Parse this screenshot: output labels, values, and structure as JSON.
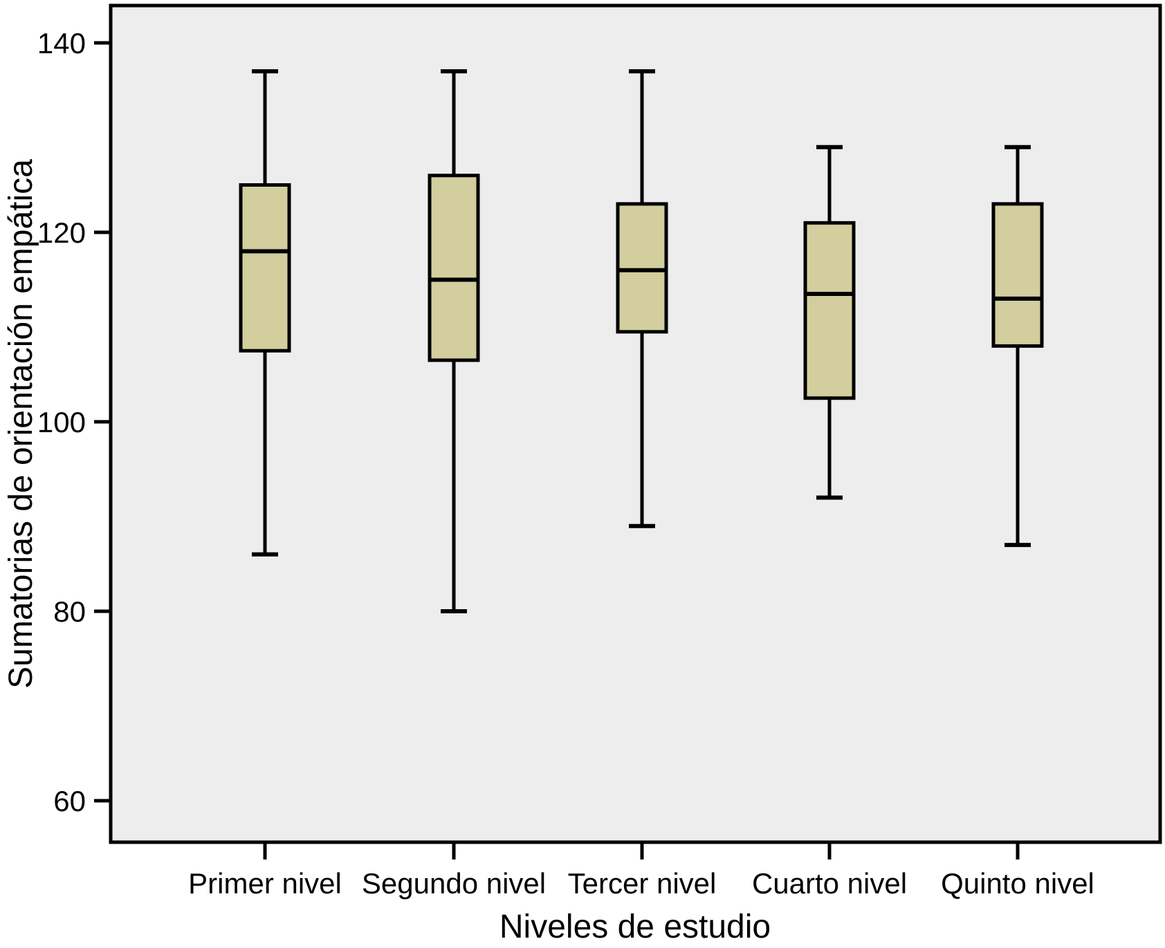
{
  "chart_data": {
    "type": "boxplot",
    "title": "",
    "xlabel": "Niveles de estudio",
    "ylabel": "Sumatorias de orientación empática",
    "categories": [
      "Primer nivel",
      "Segundo nivel",
      "Tercer nivel",
      "Cuarto nivel",
      "Quinto nivel"
    ],
    "series": [
      {
        "name": "Primer nivel",
        "min": 86,
        "q1": 107.5,
        "median": 118,
        "q3": 125,
        "max": 137
      },
      {
        "name": "Segundo nivel",
        "min": 80,
        "q1": 106.5,
        "median": 115,
        "q3": 126,
        "max": 137
      },
      {
        "name": "Tercer nivel",
        "min": 89,
        "q1": 109.5,
        "median": 116,
        "q3": 123,
        "max": 137
      },
      {
        "name": "Cuarto nivel",
        "min": 92,
        "q1": 102.5,
        "median": 113.5,
        "q3": 121,
        "max": 129
      },
      {
        "name": "Quinto nivel",
        "min": 87,
        "q1": 108,
        "median": 113,
        "q3": 123,
        "max": 129
      }
    ],
    "y_ticks": [
      140,
      120,
      100,
      80,
      60
    ],
    "ylim": [
      56,
      144
    ],
    "grid": false,
    "legend": "none",
    "styles": {
      "box_fill": "#d2ce9e",
      "line_color": "#000000",
      "plot_bg": "#ededed",
      "page_bg": "#ffffff"
    }
  }
}
